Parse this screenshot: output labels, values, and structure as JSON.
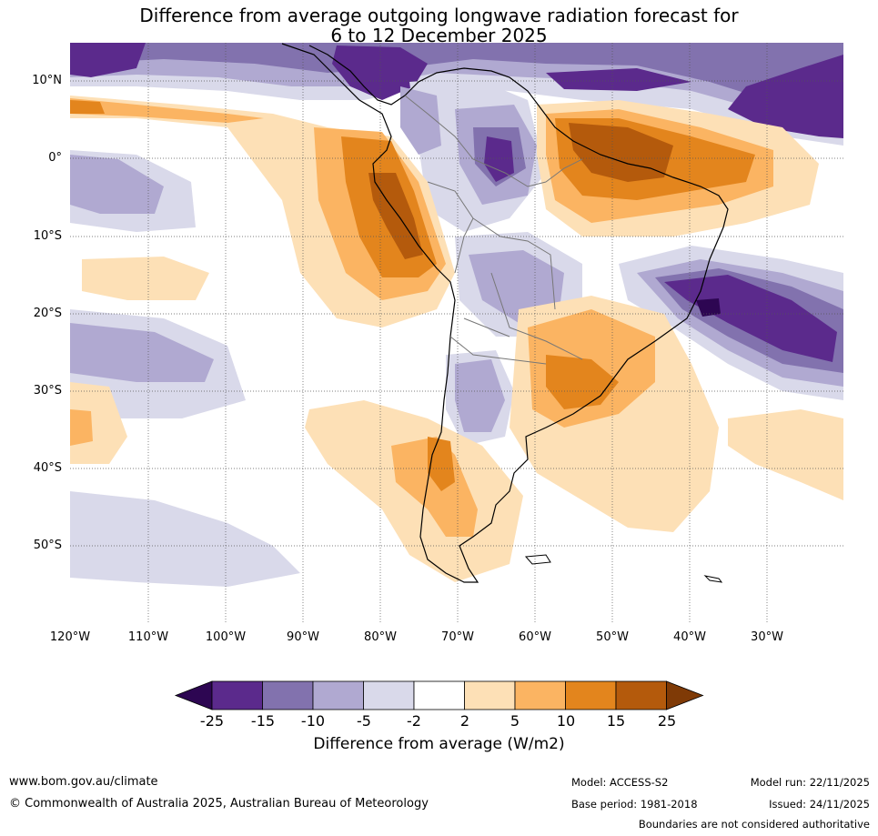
{
  "title": {
    "line1": "Difference from average outgoing longwave radiation forecast for",
    "line2": "6 to 12 December 2025"
  },
  "map": {
    "lat_labels": [
      "10°N",
      "0°",
      "10°S",
      "20°S",
      "30°S",
      "40°S",
      "50°S"
    ],
    "lon_labels": [
      "120°W",
      "110°W",
      "100°W",
      "90°W",
      "80°W",
      "70°W",
      "60°W",
      "50°W",
      "40°W",
      "30°W"
    ]
  },
  "colorbar": {
    "ticks": [
      "-25",
      "-15",
      "-10",
      "-5",
      "-2",
      "2",
      "5",
      "10",
      "15",
      "25"
    ],
    "colors": [
      "#5b2a8c",
      "#8272ae",
      "#b0a9d1",
      "#d9d9ea",
      "#ffffff",
      "#fde0b6",
      "#fbb462",
      "#e3851d",
      "#b45a0c"
    ],
    "under_color": "#2d0652",
    "over_color": "#7f3a06",
    "label": "Difference from average (W/m2)"
  },
  "footer": {
    "website": "www.bom.gov.au/climate",
    "copyright": "© Commonwealth of Australia 2025, Australian Bureau of Meteorology",
    "model": "Model: ACCESS-S2",
    "base_period": "Base period: 1981-2018",
    "model_run": "Model run: 22/11/2025",
    "issued": "Issued: 24/11/2025",
    "disclaimer": "Boundaries are not considered authoritative"
  }
}
